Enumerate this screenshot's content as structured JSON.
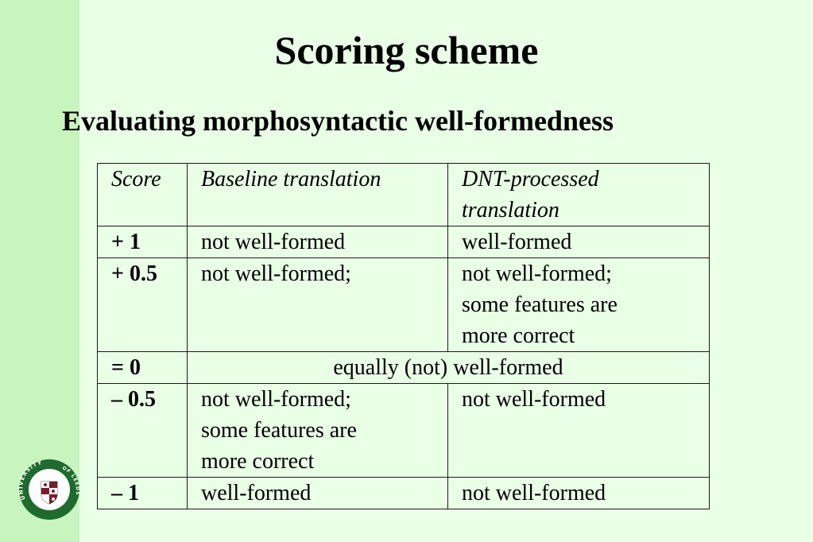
{
  "slide": {
    "title": "Scoring scheme",
    "subtitle": "Evaluating morphosyntactic well-formedness"
  },
  "table": {
    "headers": [
      "Score",
      "Baseline translation",
      "DNT-processed\ntranslation"
    ],
    "rows": [
      {
        "score": "+ 1",
        "baseline": "not well-formed",
        "dnt": "well-formed"
      },
      {
        "score": "+ 0.5",
        "baseline": "not well-formed;",
        "dnt": "not well-formed;\nsome features are\nmore correct"
      },
      {
        "score": "= 0",
        "merged": "equally (not) well-formed"
      },
      {
        "score": "– 0.5",
        "baseline": "not well-formed;\nsome features are\nmore correct",
        "dnt": "not well-formed"
      },
      {
        "score": "– 1",
        "baseline": "well-formed",
        "dnt": "not well-formed"
      }
    ]
  },
  "logo": {
    "text_top": "UNIVERSITY",
    "text_of": "OF",
    "text_right": "LEEDS",
    "colors": {
      "green": "#1f6b2e",
      "maroon": "#7a1b2c",
      "white": "#ffffff"
    }
  },
  "colors": {
    "background": "#e9ffe6",
    "side_band": "#c7f5bd",
    "table_border": "#1a1a1a"
  }
}
